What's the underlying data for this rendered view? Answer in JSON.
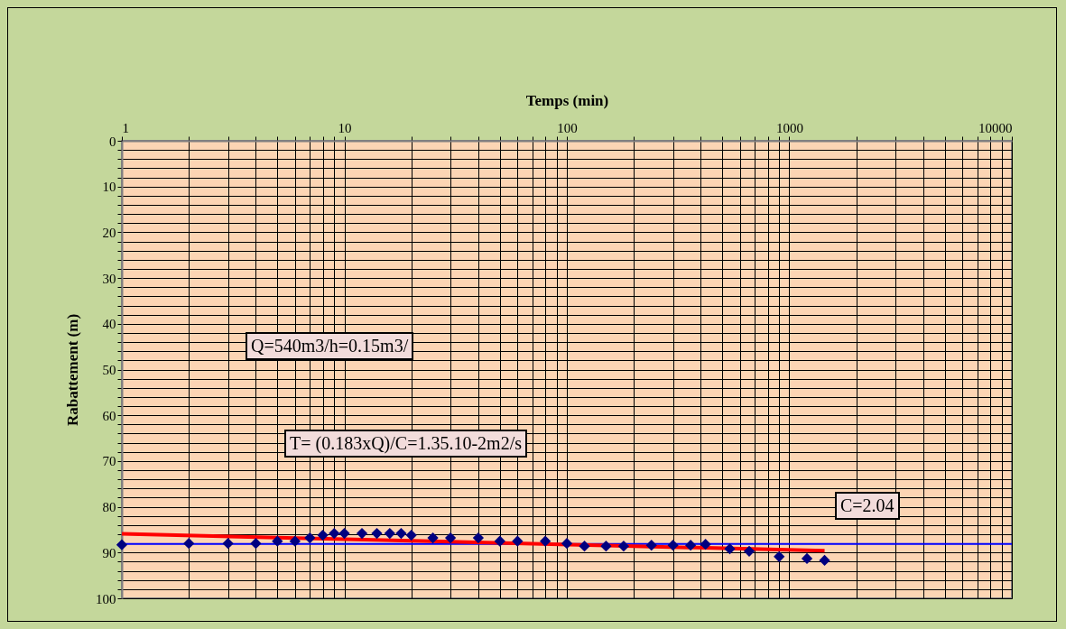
{
  "chart_data": {
    "type": "scatter",
    "xlabel": "Temps (min)",
    "ylabel": "Rabattement (m)",
    "log": "x",
    "grid": true,
    "marker": "diamond",
    "xlim": [
      1,
      10000
    ],
    "ylim": [
      100,
      0
    ],
    "xticks": [
      1,
      {
        "value": 2,
        "label": null
      },
      {
        "value": 3,
        "label": null
      },
      {
        "value": 4,
        "label": null
      },
      {
        "value": 5,
        "label": null
      },
      {
        "value": 6,
        "label": null
      },
      {
        "value": 7,
        "label": null
      },
      {
        "value": 8,
        "label": null
      },
      {
        "value": 9,
        "label": null
      },
      10,
      {
        "value": 20,
        "label": null
      },
      {
        "value": 30,
        "label": null
      },
      {
        "value": 40,
        "label": null
      },
      {
        "value": 50,
        "label": null
      },
      {
        "value": 60,
        "label": null
      },
      {
        "value": 70,
        "label": null
      },
      {
        "value": 80,
        "label": null
      },
      {
        "value": 90,
        "label": null
      },
      100,
      {
        "value": 200,
        "label": null
      },
      {
        "value": 300,
        "label": null
      },
      {
        "value": 400,
        "label": null
      },
      {
        "value": 500,
        "label": null
      },
      {
        "value": 600,
        "label": null
      },
      {
        "value": 700,
        "label": null
      },
      {
        "value": 800,
        "label": null
      },
      {
        "value": 900,
        "label": null
      },
      1000,
      {
        "value": 2000,
        "label": null
      },
      {
        "value": 3000,
        "label": null
      },
      {
        "value": 4000,
        "label": null
      },
      {
        "value": 5000,
        "label": null
      },
      {
        "value": 6000,
        "label": null
      },
      {
        "value": 7000,
        "label": null
      },
      {
        "value": 8000,
        "label": null
      },
      {
        "value": 9000,
        "label": null
      },
      10000
    ],
    "yticks": [
      0,
      {
        "value": 2,
        "label": null
      },
      {
        "value": 4,
        "label": null
      },
      {
        "value": 6,
        "label": null
      },
      {
        "value": 8,
        "label": null
      },
      10,
      {
        "value": 12,
        "label": null
      },
      {
        "value": 14,
        "label": null
      },
      {
        "value": 16,
        "label": null
      },
      {
        "value": 18,
        "label": null
      },
      20,
      {
        "value": 22,
        "label": null
      },
      {
        "value": 24,
        "label": null
      },
      {
        "value": 26,
        "label": null
      },
      {
        "value": 28,
        "label": null
      },
      30,
      {
        "value": 32,
        "label": null
      },
      {
        "value": 34,
        "label": null
      },
      {
        "value": 36,
        "label": null
      },
      {
        "value": 38,
        "label": null
      },
      40,
      {
        "value": 42,
        "label": null
      },
      {
        "value": 44,
        "label": null
      },
      {
        "value": 46,
        "label": null
      },
      {
        "value": 48,
        "label": null
      },
      50,
      {
        "value": 52,
        "label": null
      },
      {
        "value": 54,
        "label": null
      },
      {
        "value": 56,
        "label": null
      },
      {
        "value": 58,
        "label": null
      },
      60,
      {
        "value": 62,
        "label": null
      },
      {
        "value": 64,
        "label": null
      },
      {
        "value": 66,
        "label": null
      },
      {
        "value": 68,
        "label": null
      },
      70,
      {
        "value": 72,
        "label": null
      },
      {
        "value": 74,
        "label": null
      },
      {
        "value": 76,
        "label": null
      },
      {
        "value": 78,
        "label": null
      },
      80,
      {
        "value": 82,
        "label": null
      },
      {
        "value": 84,
        "label": null
      },
      {
        "value": 86,
        "label": null
      },
      {
        "value": 88,
        "label": null
      },
      90,
      {
        "value": 92,
        "label": null
      },
      {
        "value": 94,
        "label": null
      },
      {
        "value": 96,
        "label": null
      },
      {
        "value": 98,
        "label": null
      },
      100
    ],
    "series": [
      {
        "color": "#000080",
        "x": [
          1,
          2,
          3,
          4,
          5,
          6,
          7,
          8,
          9,
          10,
          12,
          14,
          16,
          18,
          20,
          25,
          30,
          40,
          50,
          60,
          80,
          100,
          120,
          150,
          180,
          240,
          300,
          360,
          420,
          540,
          660,
          900,
          1200,
          1440
        ],
        "values": [
          88.3,
          88,
          88,
          88,
          87.5,
          87.5,
          86.8,
          86.2,
          85.8,
          85.8,
          85.8,
          85.8,
          85.8,
          85.8,
          86.2,
          86.8,
          86.8,
          86.8,
          87.5,
          87.5,
          87.5,
          88,
          88.6,
          88.6,
          88.6,
          88.4,
          88.4,
          88.4,
          88.2,
          89.2,
          89.7,
          90.9,
          91.3,
          91.7
        ]
      },
      {
        "type": "line",
        "marker": "none",
        "color": "#ff0000",
        "x": [
          1,
          1440
        ],
        "values": [
          85.9,
          89.6
        ]
      }
    ],
    "ref_lines": [
      {
        "axis": "y",
        "value": 88.1,
        "color": "#0000ff"
      }
    ],
    "annotations": [
      "Q=540m3/h=0.15m3/",
      "T= (0.183xQ)/C=1.35.10-2m2/s",
      "C=2.04"
    ]
  }
}
